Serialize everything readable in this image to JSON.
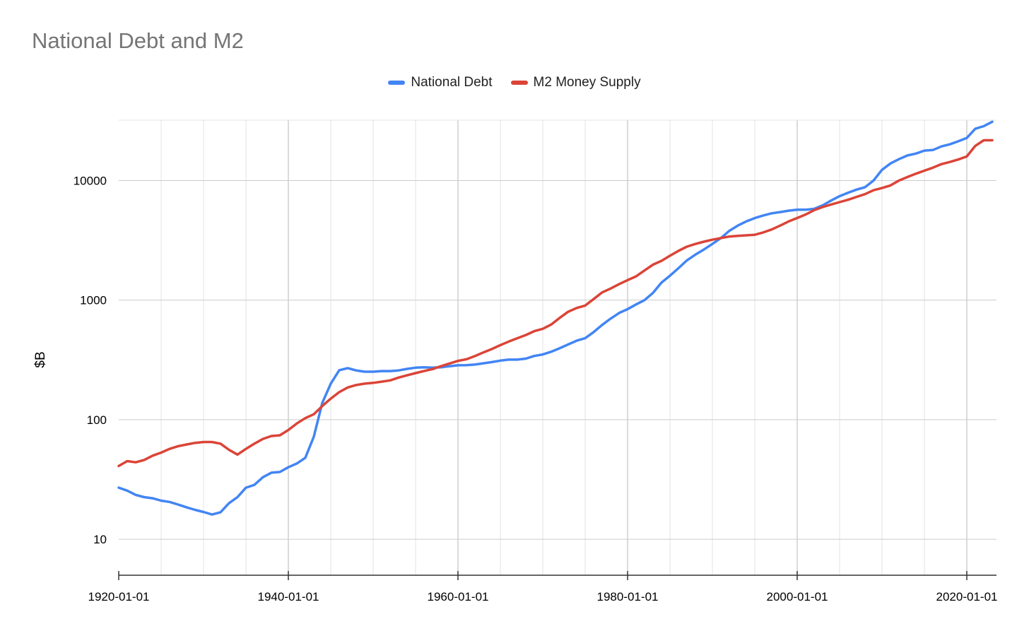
{
  "chart_data": {
    "type": "line",
    "title": "National Debt and M2",
    "xlabel": "",
    "ylabel": "$B",
    "yscale": "log",
    "ylim": [
      5,
      32000
    ],
    "xlim": [
      1920,
      2023.5
    ],
    "grid": true,
    "legend_position": "top-center",
    "x_ticks": [
      {
        "value": 1920,
        "label": "1920-01-01"
      },
      {
        "value": 1940,
        "label": "1940-01-01"
      },
      {
        "value": 1960,
        "label": "1960-01-01"
      },
      {
        "value": 1980,
        "label": "1980-01-01"
      },
      {
        "value": 2000,
        "label": "2000-01-01"
      },
      {
        "value": 2020,
        "label": "2020-01-01"
      }
    ],
    "y_ticks": [
      {
        "value": 10,
        "label": "10"
      },
      {
        "value": 100,
        "label": "100"
      },
      {
        "value": 1000,
        "label": "1000"
      },
      {
        "value": 10000,
        "label": "10000"
      }
    ],
    "x": [
      1920,
      1921,
      1922,
      1923,
      1924,
      1925,
      1926,
      1927,
      1928,
      1929,
      1930,
      1931,
      1932,
      1933,
      1934,
      1935,
      1936,
      1937,
      1938,
      1939,
      1940,
      1941,
      1942,
      1943,
      1944,
      1945,
      1946,
      1947,
      1948,
      1949,
      1950,
      1951,
      1952,
      1953,
      1954,
      1955,
      1956,
      1957,
      1958,
      1959,
      1960,
      1961,
      1962,
      1963,
      1964,
      1965,
      1966,
      1967,
      1968,
      1969,
      1970,
      1971,
      1972,
      1973,
      1974,
      1975,
      1976,
      1977,
      1978,
      1979,
      1980,
      1981,
      1982,
      1983,
      1984,
      1985,
      1986,
      1987,
      1988,
      1989,
      1990,
      1991,
      1992,
      1993,
      1994,
      1995,
      1996,
      1997,
      1998,
      1999,
      2000,
      2001,
      2002,
      2003,
      2004,
      2005,
      2006,
      2007,
      2008,
      2009,
      2010,
      2011,
      2012,
      2013,
      2014,
      2015,
      2016,
      2017,
      2018,
      2019,
      2020,
      2021,
      2022,
      2023
    ],
    "series": [
      {
        "name": "National Debt",
        "color": "#4285f4",
        "values": [
          27,
          25.5,
          23.5,
          22.5,
          22,
          21,
          20.5,
          19.5,
          18.5,
          17.6,
          16.9,
          16.1,
          16.8,
          20,
          22.5,
          27,
          28.5,
          33,
          36,
          36.5,
          40,
          43,
          48,
          72,
          138,
          200,
          259,
          270,
          258,
          252,
          252,
          255,
          255,
          258,
          266,
          272,
          274,
          272,
          274,
          280,
          285,
          286,
          289,
          296,
          303,
          312,
          318,
          318,
          324,
          341,
          351,
          370,
          396,
          426,
          458,
          480,
          540,
          620,
          700,
          780,
          840,
          920,
          1000,
          1150,
          1400,
          1600,
          1850,
          2150,
          2400,
          2650,
          2950,
          3300,
          3800,
          4200,
          4550,
          4850,
          5100,
          5320,
          5450,
          5600,
          5700,
          5700,
          5800,
          6200,
          6800,
          7400,
          7900,
          8400,
          8800,
          10000,
          12300,
          13900,
          15100,
          16200,
          16800,
          17800,
          18000,
          19300,
          20100,
          21300,
          22700,
          27100,
          28500,
          31000
        ]
      },
      {
        "name": "M2 Money Supply",
        "color": "#db4437",
        "values": [
          41,
          45,
          44,
          46,
          50,
          53,
          57,
          60,
          62,
          64,
          65,
          65,
          63,
          56,
          51,
          57,
          63,
          69,
          73,
          74,
          82,
          93,
          103,
          111,
          130,
          150,
          170,
          186,
          195,
          200,
          203,
          208,
          213,
          225,
          235,
          245,
          255,
          265,
          280,
          295,
          310,
          320,
          340,
          365,
          390,
          420,
          450,
          480,
          510,
          550,
          575,
          625,
          710,
          800,
          860,
          900,
          1020,
          1160,
          1250,
          1360,
          1470,
          1580,
          1770,
          1980,
          2130,
          2350,
          2580,
          2800,
          2950,
          3080,
          3200,
          3300,
          3400,
          3450,
          3480,
          3520,
          3680,
          3900,
          4200,
          4550,
          4860,
          5200,
          5650,
          6000,
          6300,
          6600,
          6900,
          7300,
          7700,
          8300,
          8650,
          9100,
          10000,
          10700,
          11400,
          12100,
          12800,
          13700,
          14300,
          15000,
          15900,
          19500,
          21700,
          21700
        ]
      }
    ]
  }
}
